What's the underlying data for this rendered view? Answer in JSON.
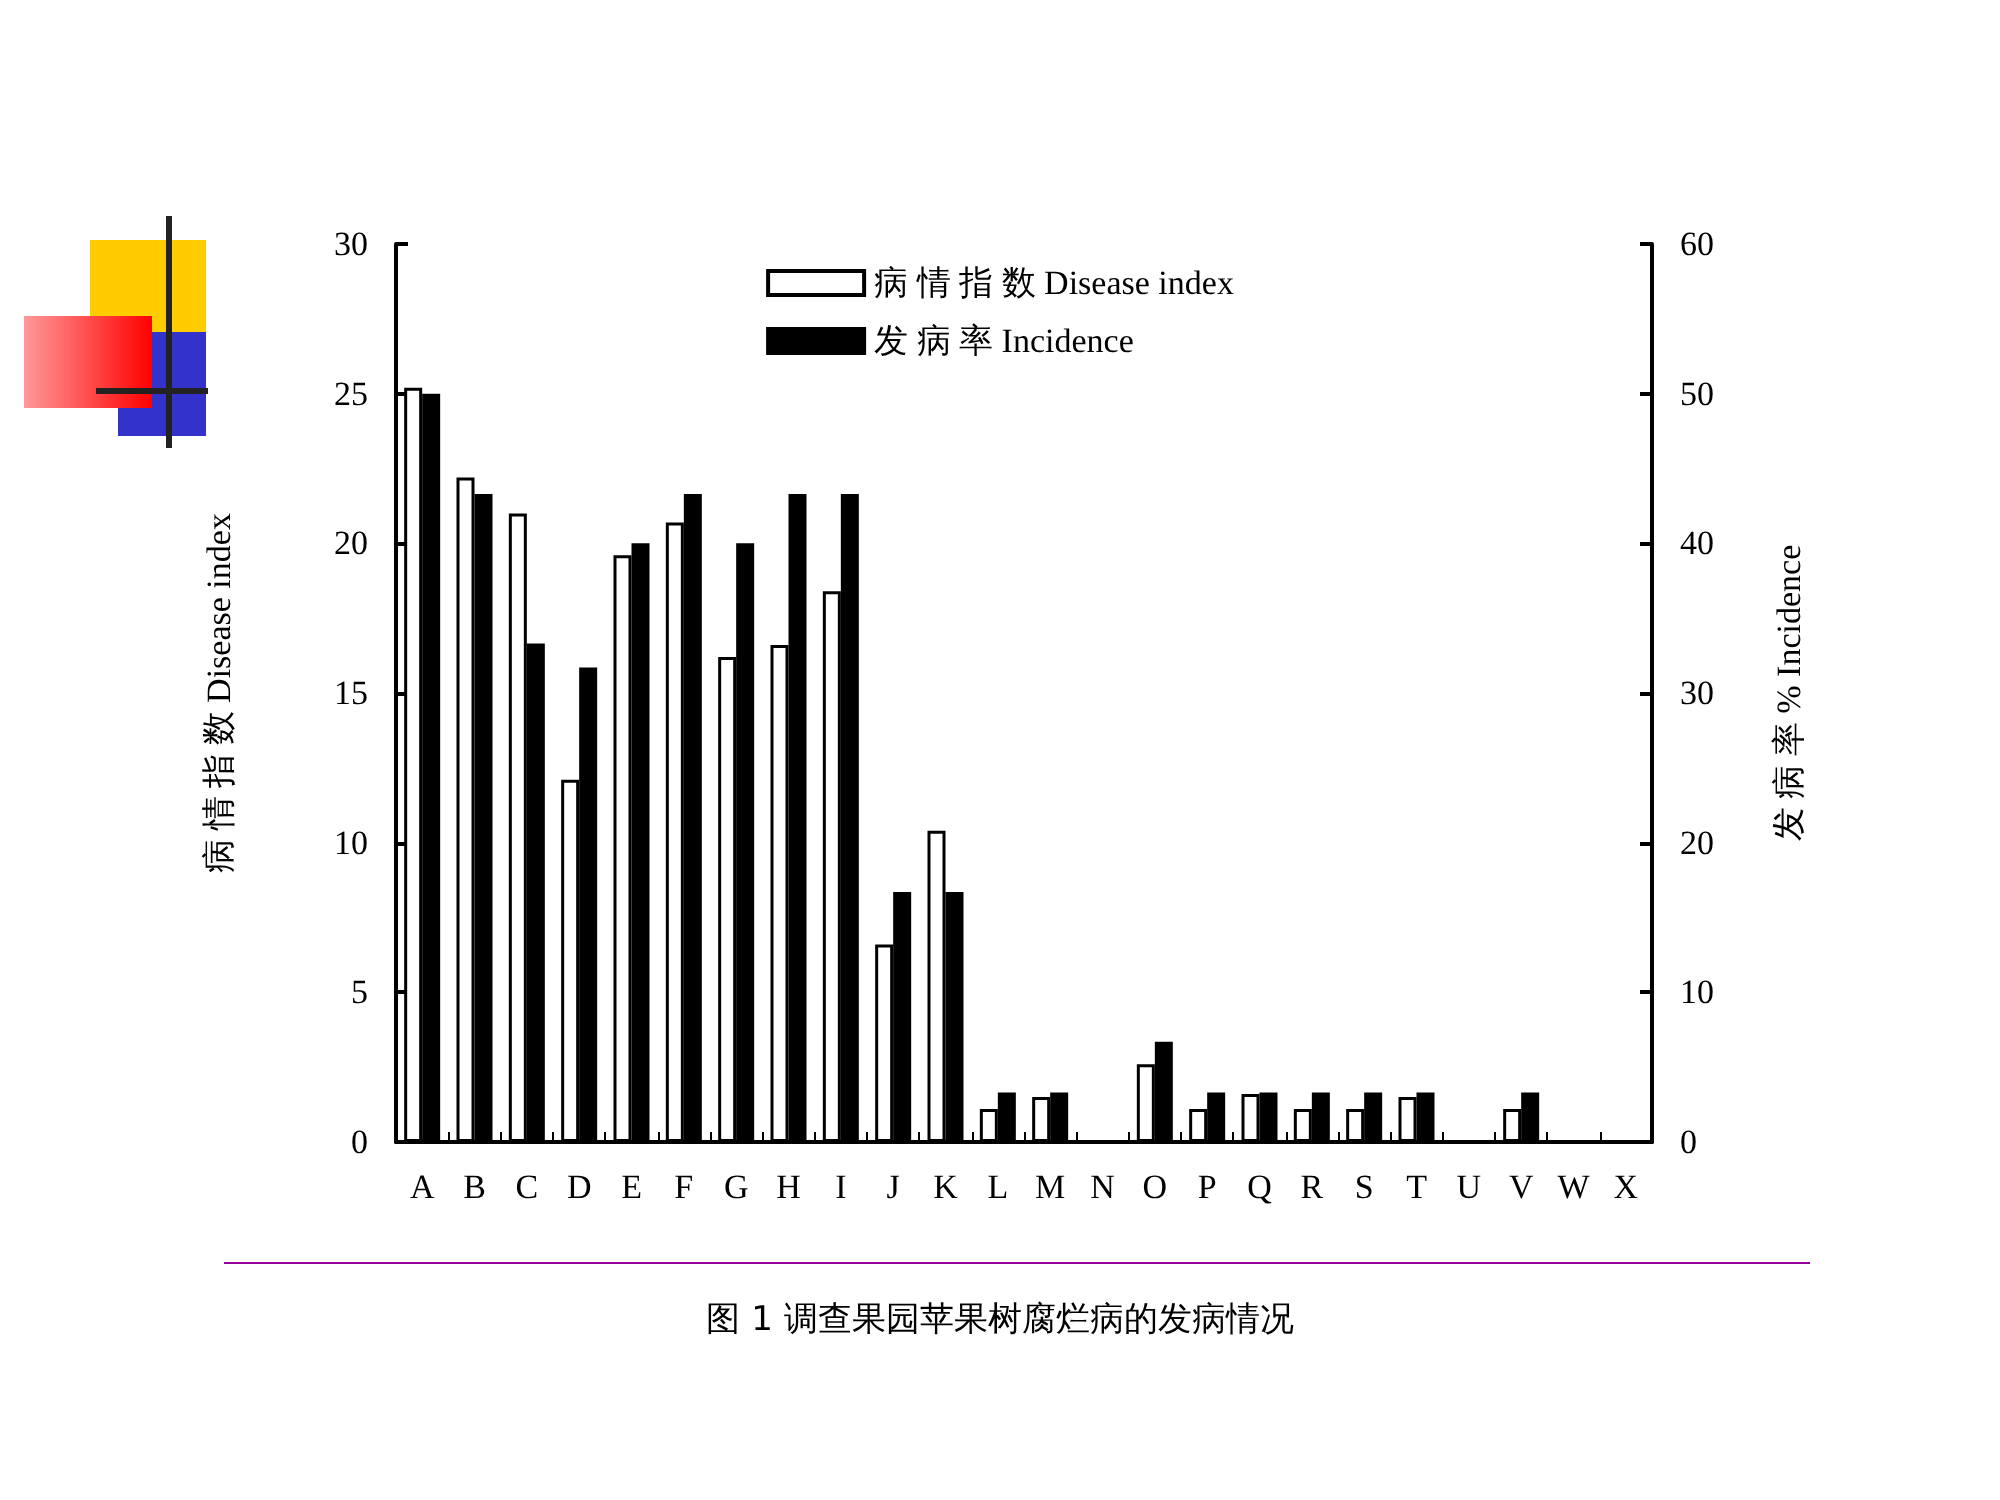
{
  "chart_data": {
    "type": "bar",
    "title": "图 1 调查果园苹果树腐烂病的发病情况",
    "ylabel": "病 情 指 数 Disease index",
    "y2label": "发 病 率 % Incidence",
    "categories": [
      "A",
      "B",
      "C",
      "D",
      "E",
      "F",
      "G",
      "H",
      "I",
      "J",
      "K",
      "L",
      "M",
      "N",
      "O",
      "P",
      "Q",
      "R",
      "S",
      "T",
      "U",
      "V",
      "W",
      "X"
    ],
    "series": [
      {
        "name": "病 情 指 数 Disease index",
        "color": "#ffffff",
        "values": [
          25.2,
          22.2,
          21.0,
          12.1,
          19.6,
          20.7,
          16.2,
          16.6,
          18.4,
          6.6,
          10.4,
          1.1,
          1.5,
          null,
          2.6,
          1.1,
          1.6,
          1.1,
          1.1,
          1.5,
          null,
          1.1,
          null,
          null
        ]
      },
      {
        "name": "发 病 率 Incidence",
        "color": "#000000",
        "axis": "y2",
        "values": [
          50,
          43.3,
          33.3,
          31.7,
          40,
          43.3,
          40,
          43.3,
          43.3,
          16.7,
          16.7,
          3.3,
          3.3,
          null,
          6.7,
          3.3,
          3.3,
          3.3,
          3.3,
          3.3,
          null,
          3.3,
          null,
          null
        ]
      }
    ],
    "ylim": [
      0,
      30
    ],
    "yticks": [
      0,
      5,
      10,
      15,
      20,
      25,
      30
    ],
    "y2lim": [
      0,
      60
    ],
    "y2ticks": [
      0,
      10,
      20,
      30,
      40,
      50,
      60
    ],
    "legend": "top",
    "grid": false
  }
}
